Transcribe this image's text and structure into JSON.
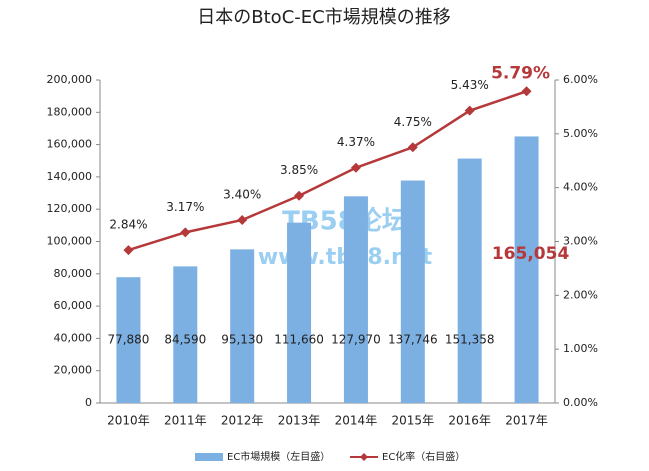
{
  "chart_data": {
    "type": "bar",
    "title": "日本のBtoC-EC市場規模の推移",
    "categories": [
      "2010年",
      "2011年",
      "2012年",
      "2013年",
      "2014年",
      "2015年",
      "2016年",
      "2017年"
    ],
    "series": [
      {
        "name": "EC市場規模（左目盛）",
        "type": "bar",
        "color": "#7cafe2",
        "values": [
          77880,
          84590,
          95130,
          111660,
          127970,
          137746,
          151358,
          165054
        ],
        "value_labels": [
          "77,880",
          "84,590",
          "95,130",
          "111,660",
          "127,970",
          "137,746",
          "151,358",
          "165,054"
        ]
      },
      {
        "name": "EC化率（右目盛）",
        "type": "line",
        "color": "#b5383a",
        "axis": "y2",
        "values": [
          2.84,
          3.17,
          3.4,
          3.85,
          4.37,
          4.75,
          5.43,
          5.79
        ],
        "value_labels": [
          "2.84%",
          "3.17%",
          "3.40%",
          "3.85%",
          "4.37%",
          "4.75%",
          "5.43%",
          "5.79%"
        ]
      }
    ],
    "ylim": [
      0,
      200000
    ],
    "yticks": [
      0,
      {
        "value": 20000,
        "label": "20,000"
      },
      {
        "value": 40000,
        "label": "40,000"
      },
      {
        "value": 60000,
        "label": "60,000"
      },
      {
        "value": 80000,
        "label": "80,000"
      },
      {
        "value": 100000,
        "label": "100,000"
      },
      {
        "value": 120000,
        "label": "120,000"
      },
      {
        "value": 140000,
        "label": "140,000"
      },
      {
        "value": 160000,
        "label": "160,000"
      },
      {
        "value": 180000,
        "label": "180,000"
      },
      {
        "value": 200000,
        "label": "200,000"
      }
    ],
    "y2lim": [
      0,
      6
    ],
    "y2ticks": [
      {
        "value": 0,
        "label": "0.00%"
      },
      {
        "value": 1,
        "label": "1.00%"
      },
      {
        "value": 2,
        "label": "2.00%"
      },
      {
        "value": 3,
        "label": "3.00%"
      },
      {
        "value": 4,
        "label": "4.00%"
      },
      {
        "value": 5,
        "label": "5.00%"
      },
      {
        "value": 6,
        "label": "6.00%"
      }
    ],
    "watermark": [
      "TB58论坛",
      "www.tb58.net"
    ]
  }
}
